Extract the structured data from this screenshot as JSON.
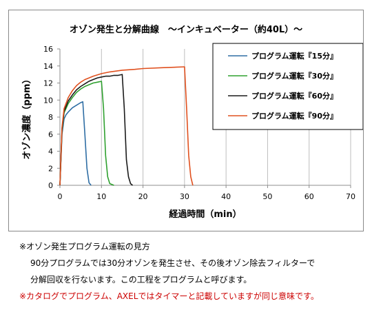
{
  "chart_data": {
    "type": "line",
    "title": "オゾン発生と分解曲線　～インキュベーター（約40L）～",
    "xlabel": "経過時間（min）",
    "ylabel": "オゾン濃度（ppm）",
    "xlim": [
      0,
      70
    ],
    "ylim": [
      0,
      16
    ],
    "xticks": [
      0,
      10,
      20,
      30,
      40,
      50,
      60,
      70
    ],
    "yticks": [
      0,
      2,
      4,
      6,
      8,
      10,
      12,
      14,
      16
    ],
    "grid": "vertical",
    "legend_position": "top-right",
    "series": [
      {
        "name": "プログラム運転『15分』",
        "color": "#2e6da4",
        "x": [
          0,
          0.5,
          1,
          1.5,
          2,
          3,
          4,
          5,
          5.5,
          6,
          6.5,
          7,
          7.5
        ],
        "y": [
          0,
          6,
          7.8,
          8.3,
          8.6,
          9.1,
          9.4,
          9.7,
          9.8,
          6.0,
          2.0,
          0.3,
          0
        ]
      },
      {
        "name": "プログラム運転『30分』",
        "color": "#2ea02e",
        "x": [
          0,
          0.5,
          1,
          2,
          3,
          4,
          5,
          6,
          7,
          8,
          9,
          10,
          10.5,
          11,
          11.5,
          12,
          13
        ],
        "y": [
          0,
          6.4,
          8.5,
          9.6,
          10.3,
          10.9,
          11.3,
          11.6,
          11.8,
          12.0,
          12.1,
          12.2,
          9.0,
          3.5,
          1.0,
          0.2,
          0
        ]
      },
      {
        "name": "プログラム運転『60分』",
        "color": "#1a1a1a",
        "x": [
          0,
          0.5,
          1,
          2,
          3,
          4,
          5,
          6,
          7,
          8,
          9,
          10,
          11,
          12,
          13,
          14,
          15,
          15.5,
          16,
          16.5,
          17,
          17.5
        ],
        "y": [
          0,
          6.6,
          8.7,
          9.9,
          10.6,
          11.2,
          11.6,
          11.9,
          12.2,
          12.4,
          12.6,
          12.7,
          12.8,
          12.8,
          12.9,
          12.9,
          13.0,
          9.0,
          3.0,
          1.0,
          0.2,
          0
        ]
      },
      {
        "name": "プログラム運転『90分』",
        "color": "#e0501e",
        "x": [
          0,
          0.5,
          1,
          2,
          3,
          4,
          5,
          6,
          7,
          8,
          10,
          12,
          15,
          18,
          20,
          25,
          30,
          30.5,
          31,
          31.5,
          32
        ],
        "y": [
          0,
          6.8,
          9.0,
          10.3,
          11.1,
          11.7,
          12.1,
          12.4,
          12.6,
          12.8,
          13.1,
          13.3,
          13.5,
          13.6,
          13.7,
          13.8,
          13.9,
          9.0,
          3.5,
          1.0,
          0
        ]
      }
    ]
  },
  "notes": {
    "heading": "※オゾン発生プログラム運転の見方",
    "line1": "90分プログラムでは30分オゾンを発生させ、その後オゾン除去フィルターで",
    "line2": "分解回収を行ないます。この工程をプログラムと呼びます。",
    "warning": "※カタログでプログラム、AXELではタイマーと記載していますが同じ意味です。"
  }
}
